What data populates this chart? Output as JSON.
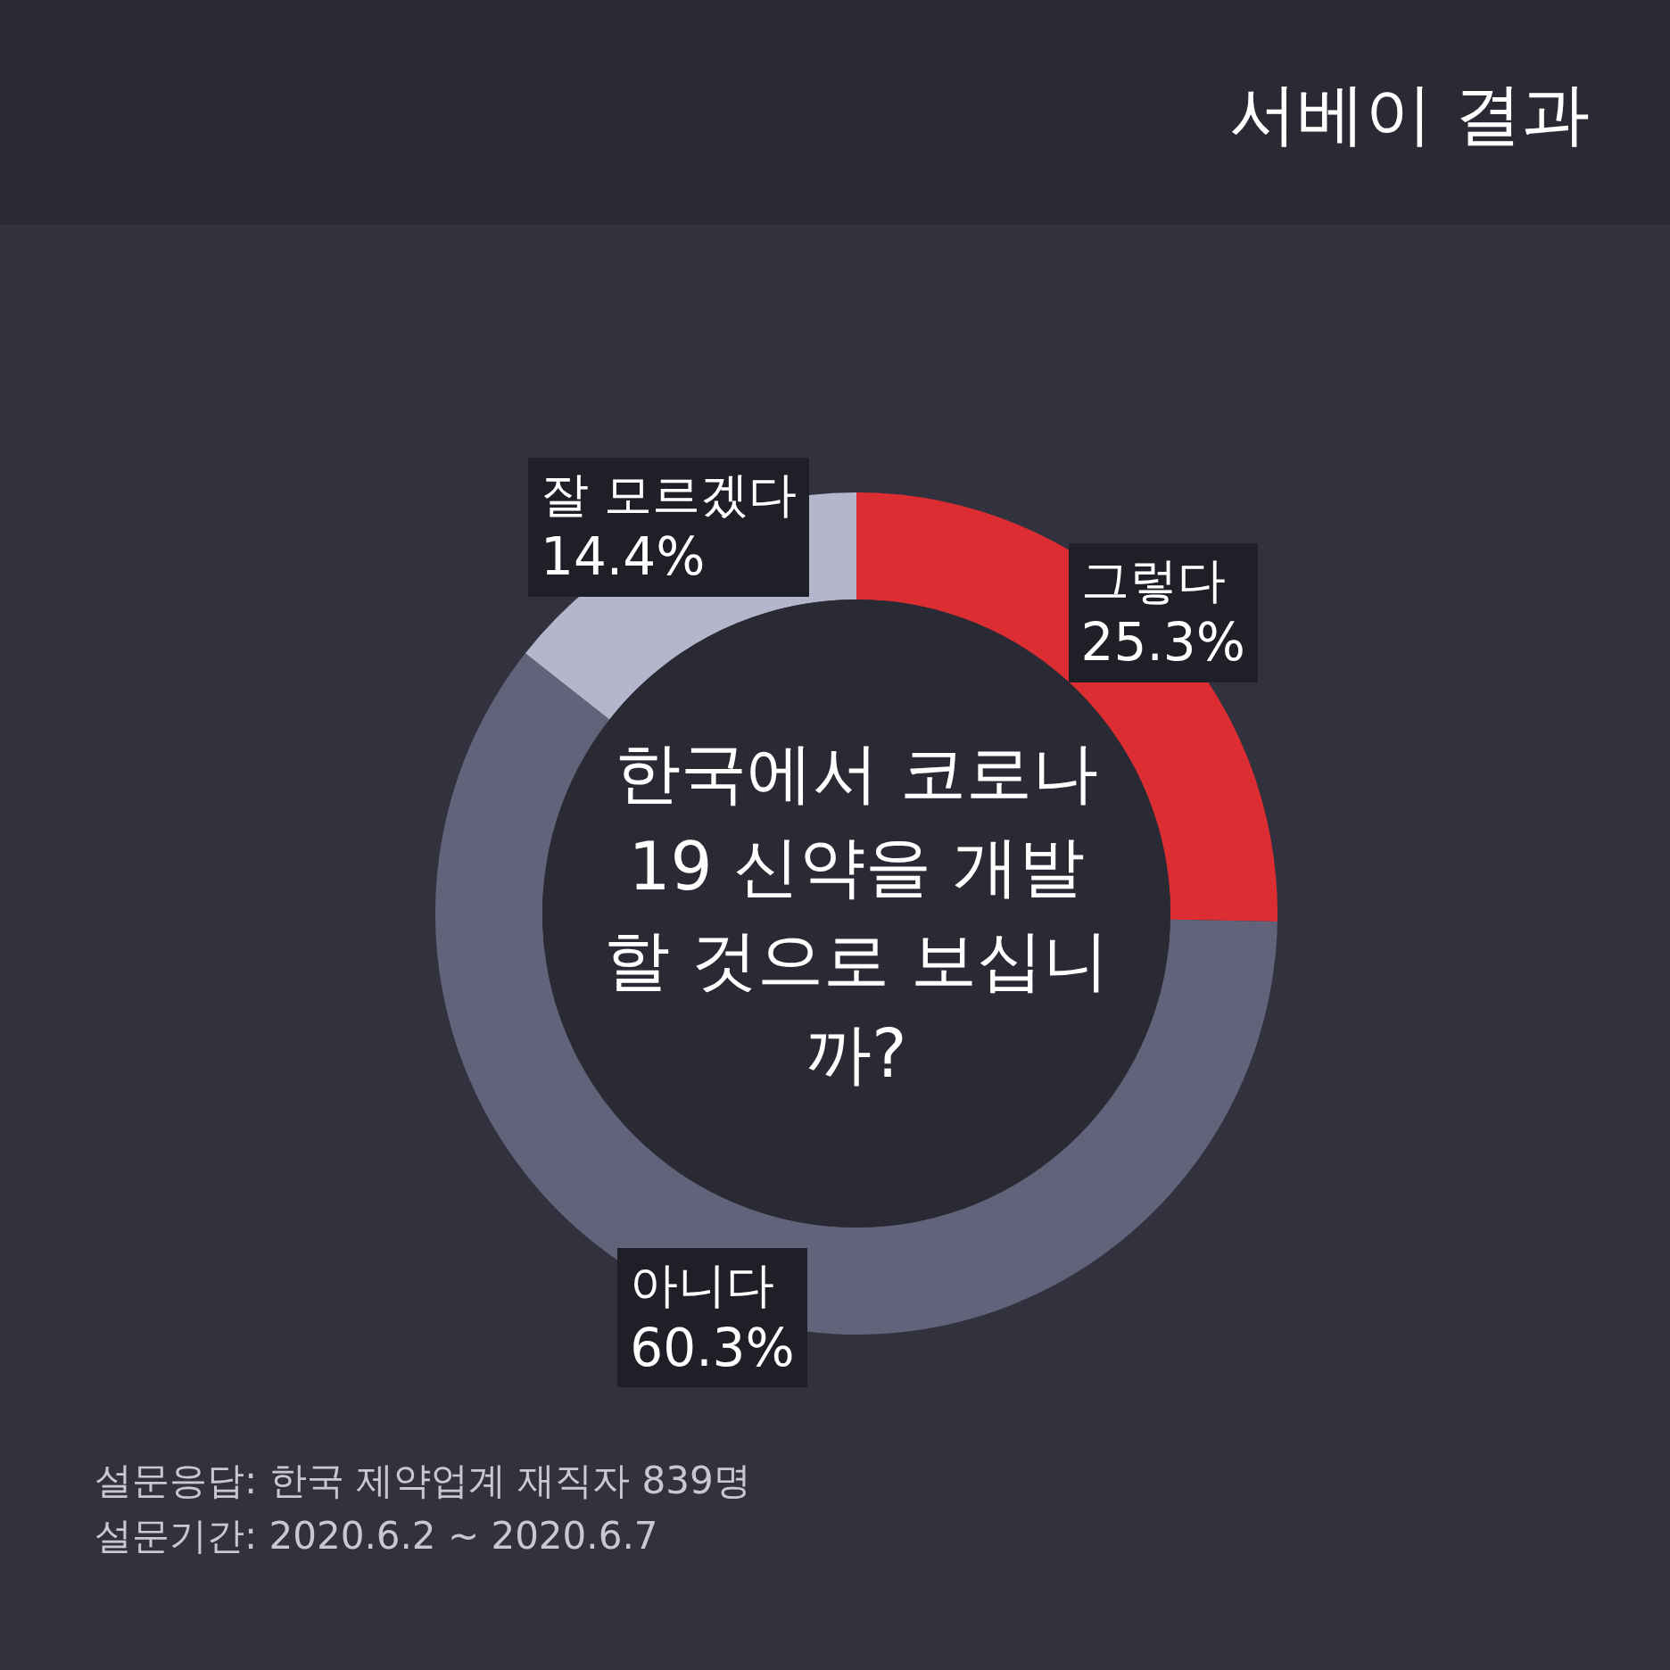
{
  "chart_data": {
    "type": "donut",
    "title": "서베이 결과",
    "subtitle": "한국에서 코로나19 신약을 개발할 것으로 보십니까?",
    "categories": [
      "그렇다",
      "아니다",
      "잘 모르겠다"
    ],
    "values": [
      25.3,
      60.3,
      14.4
    ],
    "colors": [
      "#dc2e32",
      "#62627a",
      "#b5b5cc"
    ],
    "value_labels": [
      "25.3%",
      "60.3%",
      "14.4%"
    ],
    "annotations": [
      "설문응답: 한국 제약업계 재직자  839명",
      "설문기간: 2020.6.2 ~ 2020.6.7"
    ]
  }
}
